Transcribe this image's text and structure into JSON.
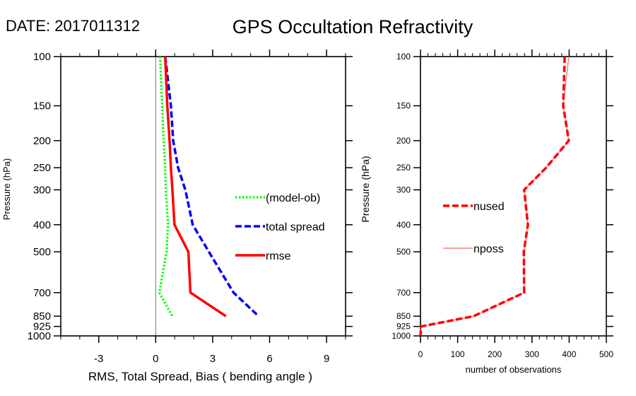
{
  "header": {
    "date_label": "DATE: 2017011312",
    "title": "GPS Occultation Refractivity"
  },
  "chart_data": [
    {
      "type": "line",
      "name": "left-panel",
      "title": "",
      "xlabel": "RMS, Total Spread, Bias ( bending angle )",
      "ylabel": "Pressure (hPa)",
      "xlim": [
        -5,
        10
      ],
      "ylim": [
        1000,
        100
      ],
      "yscale": "log",
      "xticks": [
        -3,
        0,
        3,
        6,
        9
      ],
      "xtick_labels": [
        "-3",
        "0",
        "3",
        "6",
        "9"
      ],
      "yticks": [
        100,
        150,
        200,
        250,
        300,
        400,
        500,
        700,
        850,
        925,
        1000
      ],
      "ytick_labels": [
        "100",
        "150",
        "200",
        "250",
        "300",
        "400",
        "500",
        "700",
        "850",
        "925",
        "1000"
      ],
      "zero_line": 0,
      "grid": false,
      "legend": "right-center",
      "pressure": [
        100,
        150,
        200,
        250,
        300,
        400,
        500,
        700,
        850
      ],
      "series": [
        {
          "name": "(model-ob)",
          "color": "#00ff00",
          "style": "dotted",
          "values": [
            0.23,
            0.34,
            0.42,
            0.5,
            0.53,
            0.65,
            0.57,
            0.19,
            0.88
          ]
        },
        {
          "name": "total spread",
          "color": "#0000ff",
          "style": "dashed",
          "values": [
            0.5,
            0.8,
            0.92,
            1.18,
            1.56,
            1.95,
            2.8,
            4.1,
            5.42
          ]
        },
        {
          "name": "rmse",
          "color": "#ff0000",
          "style": "solid",
          "values": [
            0.5,
            0.61,
            0.73,
            0.8,
            0.88,
            0.99,
            1.72,
            1.83,
            3.7
          ]
        }
      ]
    },
    {
      "type": "line",
      "name": "right-panel",
      "title": "",
      "xlabel": "number of observations",
      "ylabel": "Pressure (hPa)",
      "xlim": [
        0,
        500
      ],
      "ylim": [
        1000,
        100
      ],
      "yscale": "log",
      "xticks": [
        0,
        100,
        200,
        300,
        400,
        500
      ],
      "xtick_labels": [
        "0",
        "100",
        "200",
        "300",
        "400",
        "500"
      ],
      "yticks": [
        100,
        150,
        200,
        250,
        300,
        400,
        500,
        700,
        850,
        925,
        1000
      ],
      "ytick_labels": [
        "100",
        "150",
        "200",
        "250",
        "300",
        "400",
        "500",
        "700",
        "850",
        "925",
        "1000"
      ],
      "grid": false,
      "legend": "left-center",
      "pressure": [
        100,
        150,
        200,
        250,
        300,
        400,
        500,
        700,
        850,
        925,
        1000
      ],
      "series": [
        {
          "name": "nused",
          "color": "#ff0000",
          "style": "dashed",
          "values": [
            388,
            384,
            399,
            338,
            279,
            289,
            278,
            279,
            143,
            2,
            0
          ]
        },
        {
          "name": "nposs",
          "color": "#ff6666",
          "style": "thin",
          "values": [
            399,
            384,
            399,
            338,
            279,
            289,
            278,
            279,
            143,
            2,
            0
          ]
        }
      ]
    }
  ]
}
